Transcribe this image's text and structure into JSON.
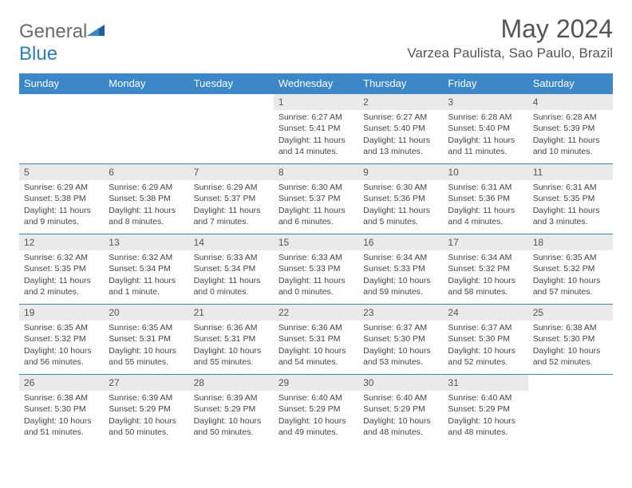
{
  "brand": {
    "part1": "General",
    "part2": "Blue"
  },
  "title": "May 2024",
  "location": "Varzea Paulista, Sao Paulo, Brazil",
  "colors": {
    "header_bg": "#3b87c8",
    "header_text": "#ffffff",
    "daynum_bg": "#eaeaea",
    "border": "#3b87c8",
    "body_text": "#444444",
    "title_text": "#555555",
    "logo_gray": "#6a6a6a",
    "logo_blue": "#2f7bbf"
  },
  "weekdays": [
    "Sunday",
    "Monday",
    "Tuesday",
    "Wednesday",
    "Thursday",
    "Friday",
    "Saturday"
  ],
  "weeks": [
    [
      {
        "empty": true
      },
      {
        "empty": true
      },
      {
        "empty": true
      },
      {
        "day": "1",
        "sunrise": "Sunrise: 6:27 AM",
        "sunset": "Sunset: 5:41 PM",
        "daylight": "Daylight: 11 hours and 14 minutes."
      },
      {
        "day": "2",
        "sunrise": "Sunrise: 6:27 AM",
        "sunset": "Sunset: 5:40 PM",
        "daylight": "Daylight: 11 hours and 13 minutes."
      },
      {
        "day": "3",
        "sunrise": "Sunrise: 6:28 AM",
        "sunset": "Sunset: 5:40 PM",
        "daylight": "Daylight: 11 hours and 11 minutes."
      },
      {
        "day": "4",
        "sunrise": "Sunrise: 6:28 AM",
        "sunset": "Sunset: 5:39 PM",
        "daylight": "Daylight: 11 hours and 10 minutes."
      }
    ],
    [
      {
        "day": "5",
        "sunrise": "Sunrise: 6:29 AM",
        "sunset": "Sunset: 5:38 PM",
        "daylight": "Daylight: 11 hours and 9 minutes."
      },
      {
        "day": "6",
        "sunrise": "Sunrise: 6:29 AM",
        "sunset": "Sunset: 5:38 PM",
        "daylight": "Daylight: 11 hours and 8 minutes."
      },
      {
        "day": "7",
        "sunrise": "Sunrise: 6:29 AM",
        "sunset": "Sunset: 5:37 PM",
        "daylight": "Daylight: 11 hours and 7 minutes."
      },
      {
        "day": "8",
        "sunrise": "Sunrise: 6:30 AM",
        "sunset": "Sunset: 5:37 PM",
        "daylight": "Daylight: 11 hours and 6 minutes."
      },
      {
        "day": "9",
        "sunrise": "Sunrise: 6:30 AM",
        "sunset": "Sunset: 5:36 PM",
        "daylight": "Daylight: 11 hours and 5 minutes."
      },
      {
        "day": "10",
        "sunrise": "Sunrise: 6:31 AM",
        "sunset": "Sunset: 5:36 PM",
        "daylight": "Daylight: 11 hours and 4 minutes."
      },
      {
        "day": "11",
        "sunrise": "Sunrise: 6:31 AM",
        "sunset": "Sunset: 5:35 PM",
        "daylight": "Daylight: 11 hours and 3 minutes."
      }
    ],
    [
      {
        "day": "12",
        "sunrise": "Sunrise: 6:32 AM",
        "sunset": "Sunset: 5:35 PM",
        "daylight": "Daylight: 11 hours and 2 minutes."
      },
      {
        "day": "13",
        "sunrise": "Sunrise: 6:32 AM",
        "sunset": "Sunset: 5:34 PM",
        "daylight": "Daylight: 11 hours and 1 minute."
      },
      {
        "day": "14",
        "sunrise": "Sunrise: 6:33 AM",
        "sunset": "Sunset: 5:34 PM",
        "daylight": "Daylight: 11 hours and 0 minutes."
      },
      {
        "day": "15",
        "sunrise": "Sunrise: 6:33 AM",
        "sunset": "Sunset: 5:33 PM",
        "daylight": "Daylight: 11 hours and 0 minutes."
      },
      {
        "day": "16",
        "sunrise": "Sunrise: 6:34 AM",
        "sunset": "Sunset: 5:33 PM",
        "daylight": "Daylight: 10 hours and 59 minutes."
      },
      {
        "day": "17",
        "sunrise": "Sunrise: 6:34 AM",
        "sunset": "Sunset: 5:32 PM",
        "daylight": "Daylight: 10 hours and 58 minutes."
      },
      {
        "day": "18",
        "sunrise": "Sunrise: 6:35 AM",
        "sunset": "Sunset: 5:32 PM",
        "daylight": "Daylight: 10 hours and 57 minutes."
      }
    ],
    [
      {
        "day": "19",
        "sunrise": "Sunrise: 6:35 AM",
        "sunset": "Sunset: 5:32 PM",
        "daylight": "Daylight: 10 hours and 56 minutes."
      },
      {
        "day": "20",
        "sunrise": "Sunrise: 6:35 AM",
        "sunset": "Sunset: 5:31 PM",
        "daylight": "Daylight: 10 hours and 55 minutes."
      },
      {
        "day": "21",
        "sunrise": "Sunrise: 6:36 AM",
        "sunset": "Sunset: 5:31 PM",
        "daylight": "Daylight: 10 hours and 55 minutes."
      },
      {
        "day": "22",
        "sunrise": "Sunrise: 6:36 AM",
        "sunset": "Sunset: 5:31 PM",
        "daylight": "Daylight: 10 hours and 54 minutes."
      },
      {
        "day": "23",
        "sunrise": "Sunrise: 6:37 AM",
        "sunset": "Sunset: 5:30 PM",
        "daylight": "Daylight: 10 hours and 53 minutes."
      },
      {
        "day": "24",
        "sunrise": "Sunrise: 6:37 AM",
        "sunset": "Sunset: 5:30 PM",
        "daylight": "Daylight: 10 hours and 52 minutes."
      },
      {
        "day": "25",
        "sunrise": "Sunrise: 6:38 AM",
        "sunset": "Sunset: 5:30 PM",
        "daylight": "Daylight: 10 hours and 52 minutes."
      }
    ],
    [
      {
        "day": "26",
        "sunrise": "Sunrise: 6:38 AM",
        "sunset": "Sunset: 5:30 PM",
        "daylight": "Daylight: 10 hours and 51 minutes."
      },
      {
        "day": "27",
        "sunrise": "Sunrise: 6:39 AM",
        "sunset": "Sunset: 5:29 PM",
        "daylight": "Daylight: 10 hours and 50 minutes."
      },
      {
        "day": "28",
        "sunrise": "Sunrise: 6:39 AM",
        "sunset": "Sunset: 5:29 PM",
        "daylight": "Daylight: 10 hours and 50 minutes."
      },
      {
        "day": "29",
        "sunrise": "Sunrise: 6:40 AM",
        "sunset": "Sunset: 5:29 PM",
        "daylight": "Daylight: 10 hours and 49 minutes."
      },
      {
        "day": "30",
        "sunrise": "Sunrise: 6:40 AM",
        "sunset": "Sunset: 5:29 PM",
        "daylight": "Daylight: 10 hours and 48 minutes."
      },
      {
        "day": "31",
        "sunrise": "Sunrise: 6:40 AM",
        "sunset": "Sunset: 5:29 PM",
        "daylight": "Daylight: 10 hours and 48 minutes."
      },
      {
        "empty": true
      }
    ]
  ]
}
